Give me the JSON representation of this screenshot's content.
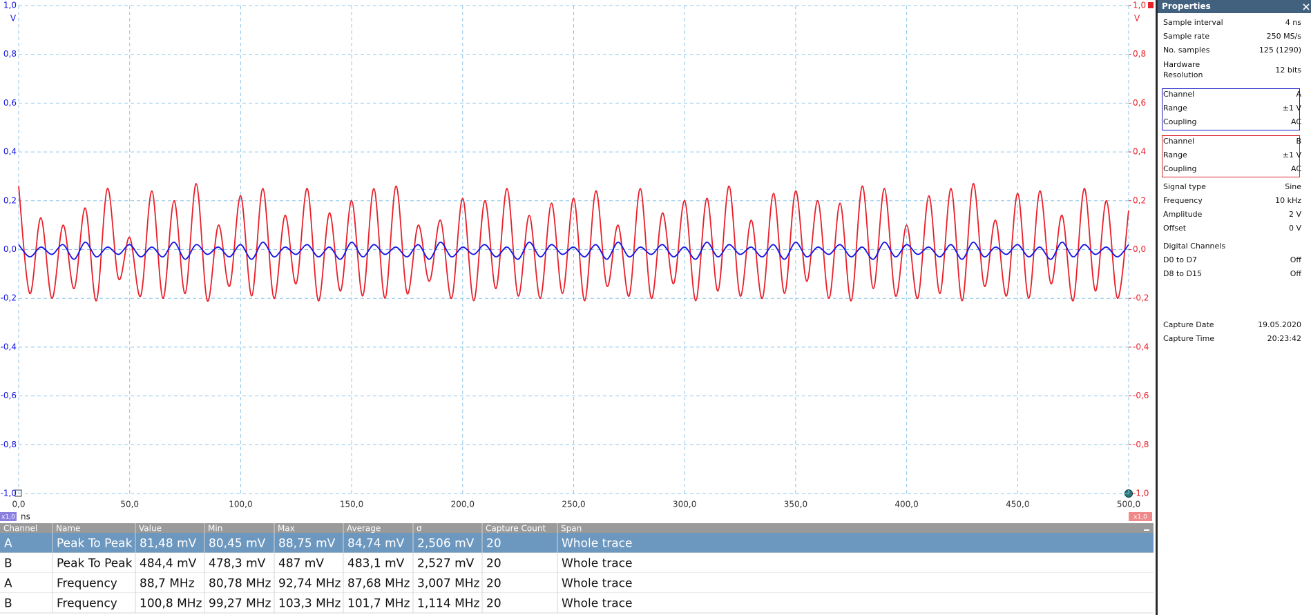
{
  "chart_data": {
    "type": "line",
    "x_label": "ns",
    "y_label": "V",
    "y2_label": "V",
    "zoom_labels": [
      "x1,0",
      "x1,0"
    ],
    "x": [
      0,
      5,
      10,
      15,
      20,
      25,
      30,
      35,
      40,
      45,
      50,
      55,
      60,
      65,
      70,
      75,
      80,
      85,
      90,
      95,
      100,
      105,
      110,
      115,
      120,
      125,
      130,
      135,
      140,
      145,
      150,
      155,
      160,
      165,
      170,
      175,
      180,
      185,
      190,
      195,
      200,
      205,
      210,
      215,
      220,
      225,
      230,
      235,
      240,
      245,
      250,
      255,
      260,
      265,
      270,
      275,
      280,
      285,
      290,
      295,
      300,
      305,
      310,
      315,
      320,
      325,
      330,
      335,
      340,
      345,
      350,
      355,
      360,
      365,
      370,
      375,
      380,
      385,
      390,
      395,
      400,
      405,
      410,
      415,
      420,
      425,
      430,
      435,
      440,
      445,
      450,
      455,
      460,
      465,
      470,
      475,
      480,
      485,
      490,
      495,
      500
    ],
    "series": [
      {
        "color": "#1414e6",
        "values": [
          0.02,
          -0.03,
          0.01,
          -0.02,
          0.02,
          -0.04,
          0.03,
          -0.03,
          0.01,
          -0.02,
          0.02,
          -0.03,
          0.01,
          -0.03,
          0.03,
          -0.04,
          0.02,
          -0.02,
          0.01,
          -0.03,
          0.02,
          -0.04,
          0.03,
          -0.03,
          0.01,
          -0.02,
          0.02,
          -0.03,
          0.01,
          -0.04,
          0.03,
          -0.03,
          0.02,
          -0.02,
          0.01,
          -0.03,
          0.02,
          -0.04,
          0.03,
          -0.03,
          0.01,
          -0.02,
          0.02,
          -0.03,
          0.01,
          -0.04,
          0.03,
          -0.03,
          0.02,
          -0.02,
          0.01,
          -0.03,
          0.02,
          -0.04,
          0.03,
          -0.03,
          0.01,
          -0.02,
          0.02,
          -0.03,
          0.01,
          -0.04,
          0.03,
          -0.03,
          0.02,
          -0.02,
          0.01,
          -0.03,
          0.02,
          -0.04,
          0.03,
          -0.03,
          0.01,
          -0.02,
          0.02,
          -0.03,
          0.01,
          -0.04,
          0.03,
          -0.03,
          0.02,
          -0.02,
          0.01,
          -0.03,
          0.02,
          -0.04,
          0.03,
          -0.03,
          0.01,
          -0.02,
          0.02,
          -0.03,
          0.01,
          -0.04,
          0.03,
          -0.03,
          0.02,
          -0.02,
          0.01,
          -0.03,
          0.02
        ]
      },
      {
        "color": "#e8202a",
        "axis": "y2",
        "values": [
          0.26,
          -0.18,
          0.13,
          -0.2,
          0.1,
          -0.16,
          0.17,
          -0.21,
          0.25,
          -0.12,
          0.05,
          -0.19,
          0.24,
          -0.2,
          0.2,
          -0.18,
          0.27,
          -0.21,
          0.1,
          -0.15,
          0.22,
          -0.19,
          0.25,
          -0.2,
          0.14,
          -0.14,
          0.25,
          -0.21,
          0.15,
          -0.17,
          0.2,
          -0.19,
          0.25,
          -0.2,
          0.26,
          -0.18,
          0.1,
          -0.13,
          0.12,
          -0.2,
          0.21,
          -0.21,
          0.2,
          -0.16,
          0.25,
          -0.19,
          0.14,
          -0.2,
          0.19,
          -0.18,
          0.21,
          -0.21,
          0.24,
          -0.15,
          0.1,
          -0.19,
          0.25,
          -0.2,
          0.15,
          -0.14,
          0.2,
          -0.21,
          0.21,
          -0.17,
          0.26,
          -0.19,
          0.12,
          -0.2,
          0.23,
          -0.18,
          0.24,
          -0.13,
          0.2,
          -0.2,
          0.19,
          -0.21,
          0.26,
          -0.16,
          0.25,
          -0.19,
          0.1,
          -0.2,
          0.22,
          -0.18,
          0.25,
          -0.21,
          0.27,
          -0.15,
          0.12,
          -0.19,
          0.23,
          -0.2,
          0.24,
          -0.14,
          0.14,
          -0.21,
          0.25,
          -0.17,
          0.2,
          -0.2,
          0.16
        ]
      }
    ],
    "xlim": [
      0,
      500
    ],
    "xticks": [
      {
        "value": 0,
        "label": "0,0"
      },
      {
        "value": 50,
        "label": "50,0"
      },
      {
        "value": 100,
        "label": "100,0"
      },
      {
        "value": 150,
        "label": "150,0"
      },
      {
        "value": 200,
        "label": "200,0"
      },
      {
        "value": 250,
        "label": "250,0"
      },
      {
        "value": 300,
        "label": "300,0"
      },
      {
        "value": 350,
        "label": "350,0"
      },
      {
        "value": 400,
        "label": "400,0"
      },
      {
        "value": 450,
        "label": "450,0"
      },
      {
        "value": 500,
        "label": "500,0"
      }
    ],
    "ylim": [
      -1,
      1
    ],
    "yticks": [
      {
        "value": -1,
        "label": "-1,0"
      },
      {
        "value": -0.8,
        "label": "-0,8"
      },
      {
        "value": -0.6,
        "label": "-0,6"
      },
      {
        "value": -0.4,
        "label": "-0,4"
      },
      {
        "value": -0.2,
        "label": "-0,2"
      },
      {
        "value": 0,
        "label": "0,0"
      },
      {
        "value": 0.2,
        "label": "0,2"
      },
      {
        "value": 0.4,
        "label": "0,4"
      },
      {
        "value": 0.6,
        "label": "0,6"
      },
      {
        "value": 0.8,
        "label": "0,8"
      },
      {
        "value": 1,
        "label": "1,0"
      }
    ],
    "y2lim": [
      -1,
      1
    ],
    "y2ticks": [
      {
        "value": -1,
        "label": "-1,0"
      },
      {
        "value": -0.8,
        "label": "-0,8"
      },
      {
        "value": -0.6,
        "label": "-0,6"
      },
      {
        "value": -0.4,
        "label": "-0,4"
      },
      {
        "value": -0.2,
        "label": "-0,2"
      },
      {
        "value": 0,
        "label": "0,0"
      },
      {
        "value": 0.2,
        "label": "0,2"
      },
      {
        "value": 0.4,
        "label": "0,4"
      },
      {
        "value": 0.6,
        "label": "0,6"
      },
      {
        "value": 0.8,
        "label": "0,8"
      },
      {
        "value": 1,
        "label": "1,0"
      }
    ],
    "grid": true
  },
  "measurements": {
    "columns": [
      "Channel",
      "Name",
      "Value",
      "Min",
      "Max",
      "Average",
      "σ",
      "Capture Count",
      "Span"
    ],
    "rows": [
      [
        "A",
        "Peak To Peak",
        "81,48 mV",
        "80,45 mV",
        "88,75 mV",
        "84,74 mV",
        "2,506 mV",
        "20",
        "Whole trace"
      ],
      [
        "B",
        "Peak To Peak",
        "484,4 mV",
        "478,3 mV",
        "487 mV",
        "483,1 mV",
        "2,527 mV",
        "20",
        "Whole trace"
      ],
      [
        "A",
        "Frequency",
        "88,7 MHz",
        "80,78 MHz",
        "92,74 MHz",
        "87,68 MHz",
        "3,007 MHz",
        "20",
        "Whole trace"
      ],
      [
        "B",
        "Frequency",
        "100,8 MHz",
        "99,27 MHz",
        "103,3 MHz",
        "101,7 MHz",
        "1,114 MHz",
        "20",
        "Whole trace"
      ]
    ]
  },
  "properties": {
    "title": "Properties",
    "acquisition": [
      {
        "label": "Sample interval",
        "value": "4 ns"
      },
      {
        "label": "Sample rate",
        "value": "250 MS/s"
      },
      {
        "label": "No. samples",
        "value": "125 (1290)"
      },
      {
        "label": "Hardware Resolution",
        "value": "12 bits"
      }
    ],
    "channel_a": [
      {
        "label": "Channel",
        "value": "A"
      },
      {
        "label": "Range",
        "value": "±1 V"
      },
      {
        "label": "Coupling",
        "value": "AC"
      }
    ],
    "channel_b": [
      {
        "label": "Channel",
        "value": "B"
      },
      {
        "label": "Range",
        "value": "±1 V"
      },
      {
        "label": "Coupling",
        "value": "AC"
      }
    ],
    "signal": [
      {
        "label": "Signal type",
        "value": "Sine"
      },
      {
        "label": "Frequency",
        "value": "10 kHz"
      },
      {
        "label": "Amplitude",
        "value": "2 V"
      },
      {
        "label": "Offset",
        "value": "0 V"
      }
    ],
    "digital_title": "Digital Channels",
    "digital": [
      {
        "label": "D0 to D7",
        "value": "Off"
      },
      {
        "label": "D8 to D15",
        "value": "Off"
      }
    ],
    "capture": [
      {
        "label": "Capture Date",
        "value": "19.05.2020"
      },
      {
        "label": "Capture Time",
        "value": "20:23:42"
      }
    ]
  }
}
